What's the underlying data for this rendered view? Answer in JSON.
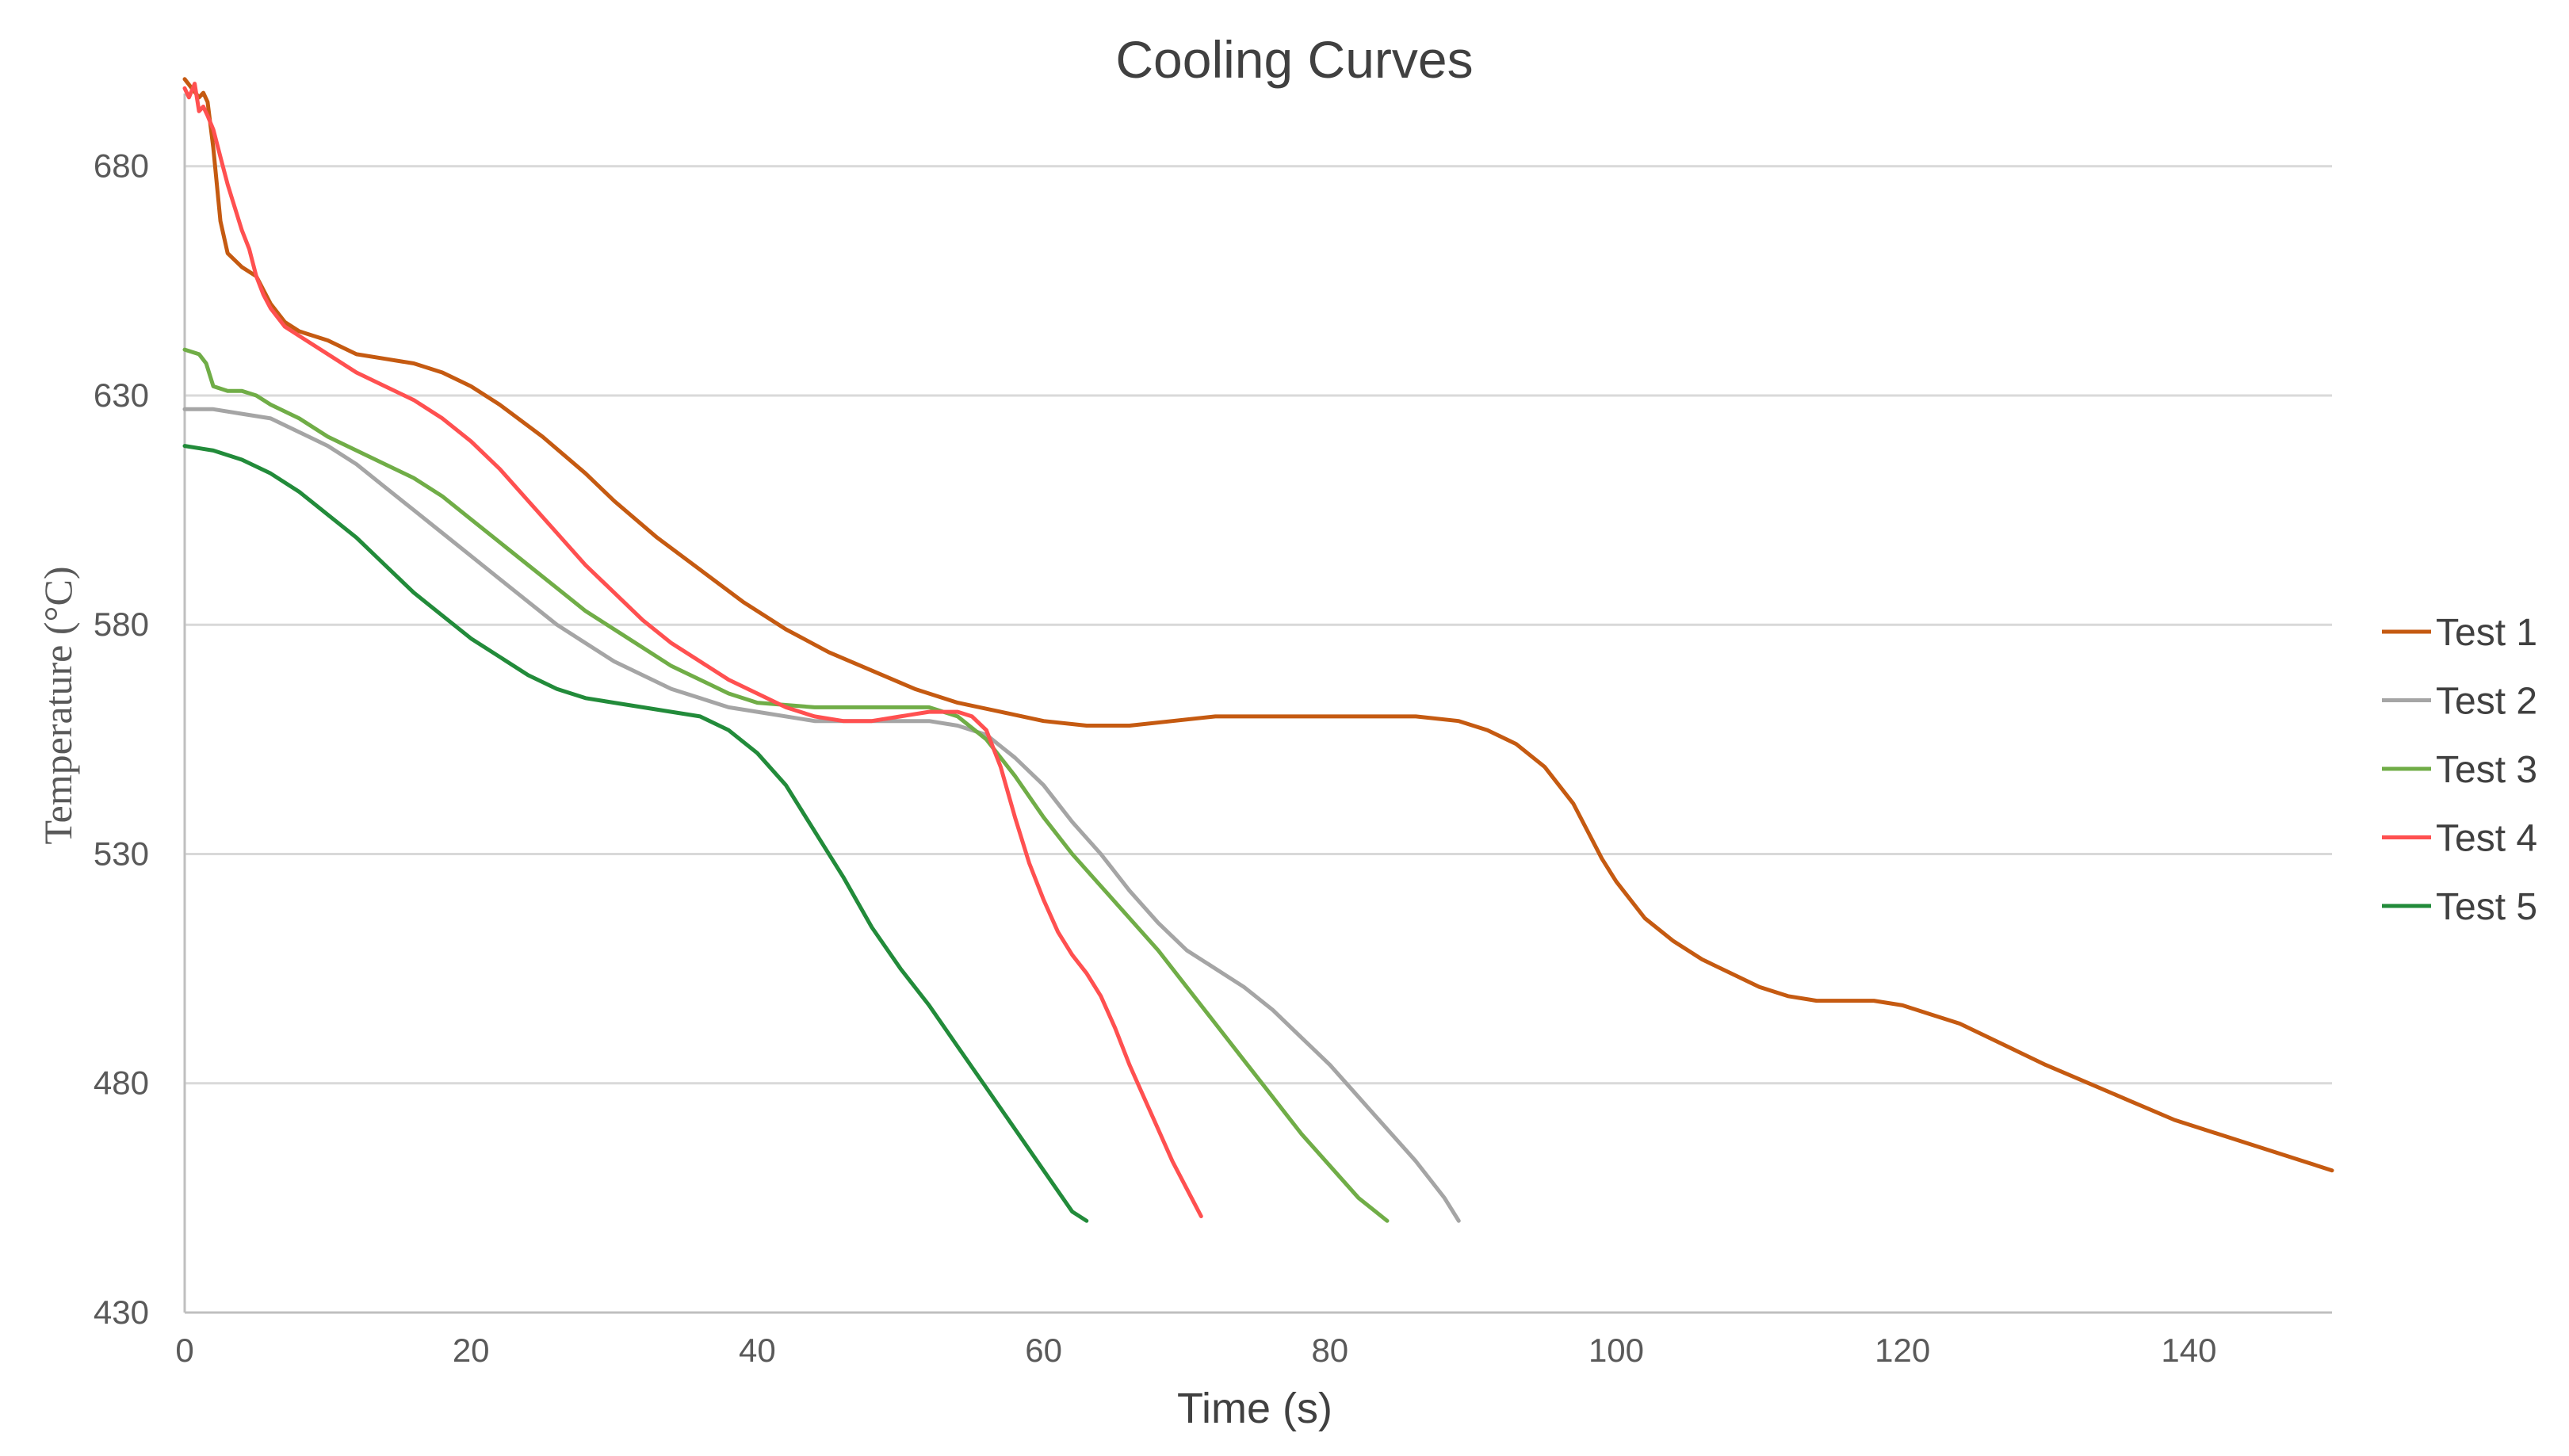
{
  "chart_data": {
    "type": "line",
    "title": "Cooling Curves",
    "xlabel": "Time (s)",
    "ylabel": "Temperature (°C)",
    "xlim": [
      0,
      150
    ],
    "ylim": [
      430,
      700
    ],
    "x_ticks": [
      0,
      20,
      40,
      60,
      80,
      100,
      120,
      140
    ],
    "y_ticks": [
      430,
      480,
      530,
      580,
      630,
      680
    ],
    "x_tick_labels": [
      "0",
      "20",
      "40",
      "60",
      "80",
      "100",
      "120",
      "140"
    ],
    "y_tick_labels": [
      "430",
      "480",
      "530",
      "580",
      "630",
      "680"
    ],
    "grid": "horizontal",
    "legend_position": "right",
    "series": [
      {
        "name": "Test 1",
        "color": "#c55a11",
        "points": [
          [
            0,
            699
          ],
          [
            0.5,
            697
          ],
          [
            1,
            695
          ],
          [
            1.3,
            696
          ],
          [
            1.6,
            694
          ],
          [
            2,
            684
          ],
          [
            2.5,
            668
          ],
          [
            3,
            661
          ],
          [
            4,
            658
          ],
          [
            5,
            656
          ],
          [
            6,
            650
          ],
          [
            7,
            646
          ],
          [
            8,
            644
          ],
          [
            10,
            642
          ],
          [
            12,
            639
          ],
          [
            14,
            638
          ],
          [
            16,
            637
          ],
          [
            18,
            635
          ],
          [
            20,
            632
          ],
          [
            22,
            628
          ],
          [
            25,
            621
          ],
          [
            28,
            613
          ],
          [
            30,
            607
          ],
          [
            33,
            599
          ],
          [
            36,
            592
          ],
          [
            39,
            585
          ],
          [
            42,
            579
          ],
          [
            45,
            574
          ],
          [
            48,
            570
          ],
          [
            51,
            566
          ],
          [
            54,
            563
          ],
          [
            57,
            561
          ],
          [
            60,
            559
          ],
          [
            63,
            558
          ],
          [
            66,
            558
          ],
          [
            69,
            559
          ],
          [
            72,
            560
          ],
          [
            75,
            560
          ],
          [
            78,
            560
          ],
          [
            82,
            560
          ],
          [
            86,
            560
          ],
          [
            89,
            559
          ],
          [
            91,
            557
          ],
          [
            93,
            554
          ],
          [
            95,
            549
          ],
          [
            97,
            541
          ],
          [
            98,
            535
          ],
          [
            99,
            529
          ],
          [
            100,
            524
          ],
          [
            102,
            516
          ],
          [
            104,
            511
          ],
          [
            106,
            507
          ],
          [
            108,
            504
          ],
          [
            110,
            501
          ],
          [
            112,
            499
          ],
          [
            114,
            498
          ],
          [
            116,
            498
          ],
          [
            118,
            498
          ],
          [
            120,
            497
          ],
          [
            122,
            495
          ],
          [
            124,
            493
          ],
          [
            126,
            490
          ],
          [
            128,
            487
          ],
          [
            130,
            484
          ],
          [
            133,
            480
          ],
          [
            136,
            476
          ],
          [
            139,
            472
          ],
          [
            142,
            469
          ],
          [
            145,
            466
          ],
          [
            148,
            463
          ],
          [
            150,
            461
          ]
        ]
      },
      {
        "name": "Test 2",
        "color": "#a5a5a5",
        "points": [
          [
            0,
            627
          ],
          [
            2,
            627
          ],
          [
            4,
            626
          ],
          [
            6,
            625
          ],
          [
            8,
            622
          ],
          [
            10,
            619
          ],
          [
            12,
            615
          ],
          [
            14,
            610
          ],
          [
            16,
            605
          ],
          [
            18,
            600
          ],
          [
            20,
            595
          ],
          [
            22,
            590
          ],
          [
            24,
            585
          ],
          [
            26,
            580
          ],
          [
            28,
            576
          ],
          [
            30,
            572
          ],
          [
            32,
            569
          ],
          [
            34,
            566
          ],
          [
            36,
            564
          ],
          [
            38,
            562
          ],
          [
            40,
            561
          ],
          [
            44,
            559
          ],
          [
            48,
            559
          ],
          [
            52,
            559
          ],
          [
            54,
            558
          ],
          [
            56,
            556
          ],
          [
            58,
            551
          ],
          [
            60,
            545
          ],
          [
            62,
            537
          ],
          [
            64,
            530
          ],
          [
            66,
            522
          ],
          [
            68,
            515
          ],
          [
            70,
            509
          ],
          [
            72,
            505
          ],
          [
            74,
            501
          ],
          [
            76,
            496
          ],
          [
            78,
            490
          ],
          [
            80,
            484
          ],
          [
            82,
            477
          ],
          [
            84,
            470
          ],
          [
            86,
            463
          ],
          [
            88,
            455
          ],
          [
            89,
            450
          ]
        ]
      },
      {
        "name": "Test 3",
        "color": "#70ad47",
        "points": [
          [
            0,
            640
          ],
          [
            1,
            639
          ],
          [
            1.5,
            637
          ],
          [
            2,
            632
          ],
          [
            3,
            631
          ],
          [
            4,
            631
          ],
          [
            5,
            630
          ],
          [
            6,
            628
          ],
          [
            8,
            625
          ],
          [
            10,
            621
          ],
          [
            12,
            618
          ],
          [
            14,
            615
          ],
          [
            16,
            612
          ],
          [
            18,
            608
          ],
          [
            20,
            603
          ],
          [
            22,
            598
          ],
          [
            24,
            593
          ],
          [
            26,
            588
          ],
          [
            28,
            583
          ],
          [
            30,
            579
          ],
          [
            32,
            575
          ],
          [
            34,
            571
          ],
          [
            36,
            568
          ],
          [
            38,
            565
          ],
          [
            40,
            563
          ],
          [
            44,
            562
          ],
          [
            48,
            562
          ],
          [
            52,
            562
          ],
          [
            54,
            560
          ],
          [
            56,
            555
          ],
          [
            58,
            547
          ],
          [
            60,
            538
          ],
          [
            62,
            530
          ],
          [
            64,
            523
          ],
          [
            66,
            516
          ],
          [
            68,
            509
          ],
          [
            70,
            501
          ],
          [
            72,
            493
          ],
          [
            74,
            485
          ],
          [
            76,
            477
          ],
          [
            78,
            469
          ],
          [
            80,
            462
          ],
          [
            82,
            455
          ],
          [
            84,
            450
          ]
        ]
      },
      {
        "name": "Test 4",
        "color": "#ff5050",
        "points": [
          [
            0,
            697
          ],
          [
            0.3,
            695
          ],
          [
            0.7,
            698
          ],
          [
            1,
            692
          ],
          [
            1.3,
            693
          ],
          [
            1.6,
            691
          ],
          [
            2,
            688
          ],
          [
            2.5,
            682
          ],
          [
            3,
            676
          ],
          [
            3.5,
            671
          ],
          [
            4,
            666
          ],
          [
            4.5,
            662
          ],
          [
            5,
            656
          ],
          [
            5.5,
            652
          ],
          [
            6,
            649
          ],
          [
            7,
            645
          ],
          [
            8,
            643
          ],
          [
            10,
            639
          ],
          [
            12,
            635
          ],
          [
            14,
            632
          ],
          [
            16,
            629
          ],
          [
            18,
            625
          ],
          [
            20,
            620
          ],
          [
            22,
            614
          ],
          [
            24,
            607
          ],
          [
            26,
            600
          ],
          [
            28,
            593
          ],
          [
            30,
            587
          ],
          [
            32,
            581
          ],
          [
            34,
            576
          ],
          [
            36,
            572
          ],
          [
            38,
            568
          ],
          [
            40,
            565
          ],
          [
            42,
            562
          ],
          [
            44,
            560
          ],
          [
            46,
            559
          ],
          [
            48,
            559
          ],
          [
            50,
            560
          ],
          [
            52,
            561
          ],
          [
            54,
            561
          ],
          [
            55,
            560
          ],
          [
            56,
            557
          ],
          [
            57,
            549
          ],
          [
            58,
            538
          ],
          [
            59,
            528
          ],
          [
            60,
            520
          ],
          [
            61,
            513
          ],
          [
            62,
            508
          ],
          [
            63,
            504
          ],
          [
            64,
            499
          ],
          [
            65,
            492
          ],
          [
            66,
            484
          ],
          [
            67,
            477
          ],
          [
            68,
            470
          ],
          [
            69,
            463
          ],
          [
            70,
            457
          ],
          [
            71,
            451
          ]
        ]
      },
      {
        "name": "Test 5",
        "color": "#228b3a",
        "points": [
          [
            0,
            619
          ],
          [
            2,
            618
          ],
          [
            4,
            616
          ],
          [
            6,
            613
          ],
          [
            8,
            609
          ],
          [
            10,
            604
          ],
          [
            12,
            599
          ],
          [
            14,
            593
          ],
          [
            16,
            587
          ],
          [
            18,
            582
          ],
          [
            20,
            577
          ],
          [
            22,
            573
          ],
          [
            24,
            569
          ],
          [
            26,
            566
          ],
          [
            28,
            564
          ],
          [
            30,
            563
          ],
          [
            32,
            562
          ],
          [
            34,
            561
          ],
          [
            36,
            560
          ],
          [
            38,
            557
          ],
          [
            40,
            552
          ],
          [
            42,
            545
          ],
          [
            44,
            535
          ],
          [
            46,
            525
          ],
          [
            48,
            514
          ],
          [
            50,
            505
          ],
          [
            52,
            497
          ],
          [
            54,
            488
          ],
          [
            56,
            479
          ],
          [
            58,
            470
          ],
          [
            60,
            461
          ],
          [
            62,
            452
          ],
          [
            63,
            450
          ]
        ]
      }
    ]
  }
}
